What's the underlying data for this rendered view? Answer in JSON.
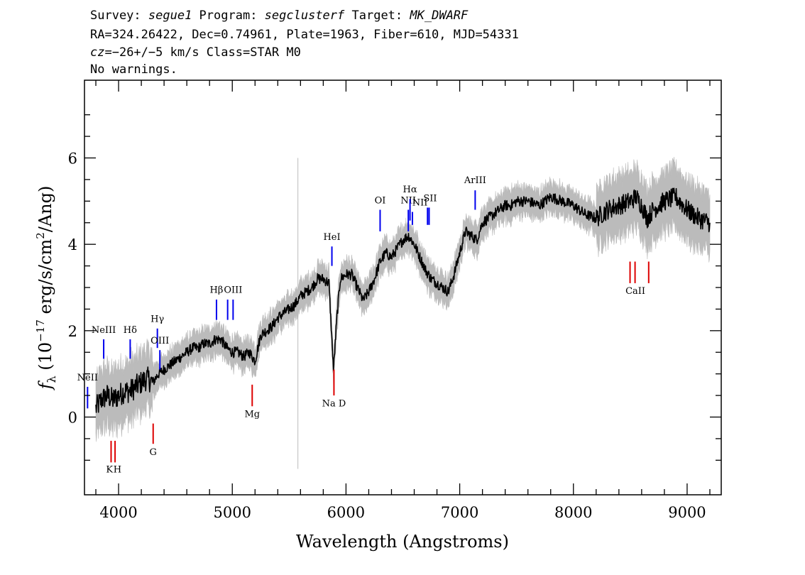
{
  "header": {
    "survey_label": "Survey: ",
    "survey": "segue1",
    "program_label": " Program: ",
    "program": "segclusterf",
    "target_label": " Target: ",
    "target": "MK_DWARF",
    "line2": "RA=324.26422, Dec=0.74961, Plate=1963, Fiber=610, MJD=54331",
    "cz_label": "cz",
    "cz_value": "=−26+/−5",
    "cz_rest": " km/s Class=STAR M0",
    "line4": "No warnings."
  },
  "chart_data": {
    "type": "line",
    "xlabel": "Wavelength (Angstroms)",
    "ylabel": "f_λ (10^-17 erg/s/cm^2/Ang)",
    "xlim": [
      3700,
      9300
    ],
    "ylim": [
      -1.8,
      7.8
    ],
    "xticks": [
      4000,
      5000,
      6000,
      7000,
      8000,
      9000
    ],
    "yticks": [
      0,
      2,
      4,
      6
    ],
    "series": [
      {
        "role": "flux",
        "color": "#000000",
        "x": [
          3800,
          3850,
          3900,
          3950,
          4000,
          4050,
          4100,
          4150,
          4200,
          4250,
          4300,
          4350,
          4400,
          4450,
          4500,
          4550,
          4600,
          4650,
          4700,
          4750,
          4800,
          4850,
          4900,
          4950,
          5000,
          5050,
          5100,
          5150,
          5200,
          5250,
          5300,
          5350,
          5400,
          5450,
          5500,
          5550,
          5600,
          5650,
          5700,
          5750,
          5800,
          5850,
          5890,
          5920,
          5950,
          6000,
          6050,
          6100,
          6150,
          6200,
          6250,
          6300,
          6350,
          6400,
          6450,
          6500,
          6550,
          6600,
          6650,
          6700,
          6750,
          6800,
          6850,
          6900,
          6950,
          7000,
          7050,
          7100,
          7150,
          7200,
          7250,
          7300,
          7350,
          7400,
          7450,
          7500,
          7600,
          7700,
          7800,
          7900,
          8000,
          8100,
          8200,
          8300,
          8400,
          8500,
          8550,
          8600,
          8650,
          8700,
          8800,
          8900,
          9000,
          9100,
          9200
        ],
        "y": [
          0.2,
          0.4,
          0.5,
          0.4,
          0.5,
          0.6,
          0.6,
          0.7,
          0.8,
          0.9,
          0.8,
          1.0,
          1.1,
          1.2,
          1.3,
          1.4,
          1.5,
          1.6,
          1.6,
          1.7,
          1.7,
          1.8,
          1.8,
          1.6,
          1.5,
          1.5,
          1.4,
          1.5,
          1.3,
          1.9,
          2.0,
          2.1,
          2.3,
          2.4,
          2.5,
          2.6,
          2.8,
          2.9,
          3.0,
          3.2,
          3.2,
          3.1,
          1.1,
          2.3,
          3.2,
          3.3,
          3.3,
          3.0,
          2.7,
          2.9,
          3.2,
          3.6,
          3.8,
          3.7,
          3.9,
          4.1,
          4.2,
          4.0,
          3.7,
          3.4,
          3.2,
          3.1,
          3.0,
          2.9,
          3.3,
          3.8,
          4.3,
          4.2,
          4.1,
          4.5,
          4.6,
          4.7,
          4.8,
          4.9,
          4.9,
          5.0,
          5.0,
          4.9,
          5.1,
          5.0,
          4.9,
          4.7,
          4.6,
          4.8,
          4.9,
          5.0,
          5.1,
          4.9,
          4.6,
          4.8,
          5.0,
          5.1,
          4.8,
          4.6,
          4.5
        ]
      }
    ],
    "emission_lines": [
      {
        "label": "NeII",
        "x": 3727
      },
      {
        "label": "NeIII",
        "x": 3869
      },
      {
        "label": "Hδ",
        "x": 4102
      },
      {
        "label": "Hγ",
        "x": 4341
      },
      {
        "label": "OIII",
        "x": 4363
      },
      {
        "label": "Hβ",
        "x": 4861
      },
      {
        "label": "OIII",
        "x": 4959
      },
      {
        "label": "OIII",
        "x": 5007
      },
      {
        "label": "HeI",
        "x": 5876
      },
      {
        "label": "OI",
        "x": 6300
      },
      {
        "label": "NII",
        "x": 6548
      },
      {
        "label": "Hα",
        "x": 6563
      },
      {
        "label": "NII",
        "x": 6584
      },
      {
        "label": "SII",
        "x": 6717
      },
      {
        "label": "SII",
        "x": 6731
      },
      {
        "label": "ArIII",
        "x": 7136
      }
    ],
    "absorption_lines": [
      {
        "label": "K",
        "x": 3934
      },
      {
        "label": "H",
        "x": 3969
      },
      {
        "label": "G",
        "x": 4304
      },
      {
        "label": "Mg",
        "x": 5175
      },
      {
        "label": "Na D",
        "x": 5894
      },
      {
        "label": "CaII",
        "x": 8498
      },
      {
        "label": "CaII",
        "x": 8542
      },
      {
        "label": "CaII",
        "x": 8662
      }
    ],
    "colors": {
      "flux": "#000000",
      "noise": "#bbbbbb",
      "emission": "#0000ee",
      "absorption": "#dd0000"
    }
  }
}
